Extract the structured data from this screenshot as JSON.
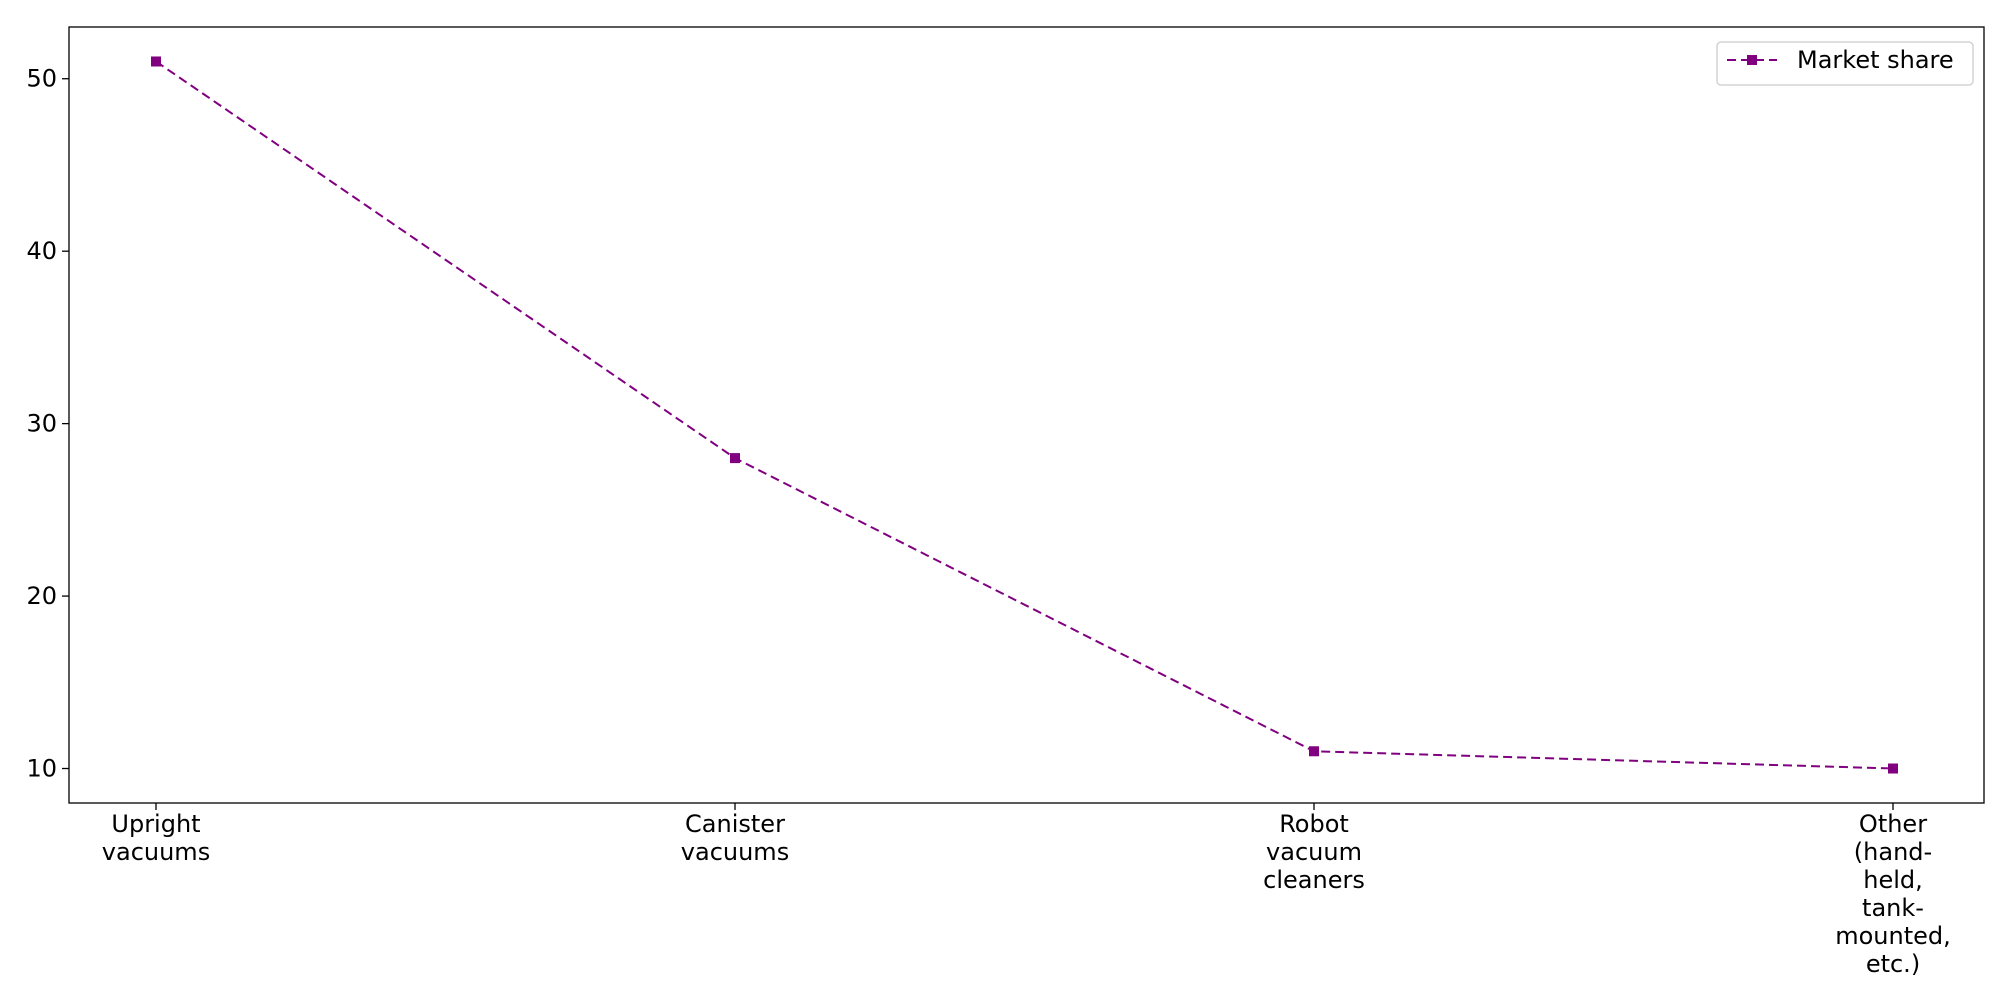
{
  "chart_data": {
    "type": "line",
    "categories": [
      [
        "Upright",
        "vacuums"
      ],
      [
        "Canister",
        "vacuums"
      ],
      [
        "Robot",
        "vacuum",
        "cleaners"
      ],
      [
        "Other",
        "(hand-",
        "held,",
        "tank-",
        "mounted,",
        "etc.)"
      ]
    ],
    "series": [
      {
        "name": "Market share",
        "values": [
          51,
          28,
          11,
          10
        ],
        "color": "#800080",
        "line_style": "dashed",
        "marker": "square"
      }
    ],
    "y_ticks": [
      10,
      20,
      30,
      40,
      50
    ],
    "ylim": [
      8,
      53
    ],
    "title": "",
    "xlabel": "",
    "ylabel": "",
    "grid": false,
    "legend_position": "top-right"
  }
}
